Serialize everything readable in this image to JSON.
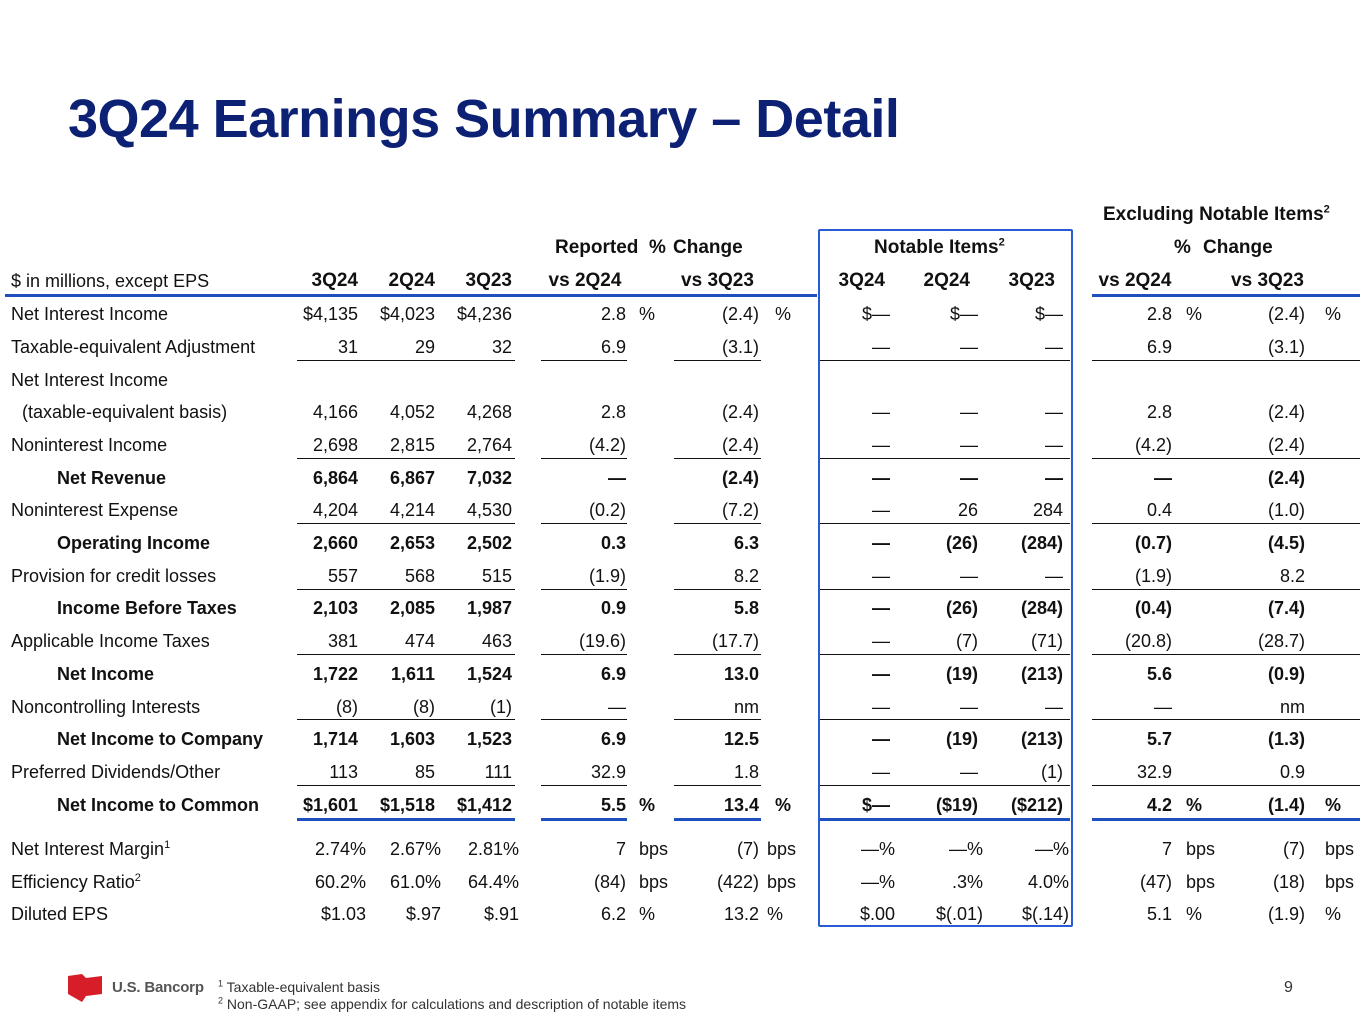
{
  "title": "3Q24 Earnings Summary – Detail",
  "colors": {
    "title": "#0c2074",
    "accent_line": "#1f4fbf",
    "box": "#2a5bd7"
  },
  "headers": {
    "excluding": "Excluding Notable Items",
    "excluding_sup": "2",
    "reported": "Reported",
    "pct_sign": "%",
    "change": "Change",
    "notable": "Notable Items",
    "notable_sup": "2",
    "pct_change_pct": "%",
    "pct_change_word": "Change",
    "rowlabel": "$ in millions, except EPS",
    "c3q24": "3Q24",
    "c2q24": "2Q24",
    "c3q23": "3Q23",
    "vs2q24": "vs 2Q24",
    "vs3q23": "vs 3Q23",
    "n3q24": "3Q24",
    "n2q24": "2Q24",
    "n3q23": "3Q23",
    "evs2q24": "vs 2Q24",
    "evs3q23": "vs 3Q23"
  },
  "rows": [
    {
      "label": "Net Interest Income",
      "q1": "$4,135",
      "q2": "$4,023",
      "q3": "$4,236",
      "v1": "2.8",
      "v1u": "%",
      "v2": "(2.4)",
      "v2u": "%",
      "n1": "$—",
      "n2": "$—",
      "n3": "$—",
      "e1": "2.8",
      "e1u": "%",
      "e2": "(2.4)",
      "e2u": "%"
    },
    {
      "label": "Taxable-equivalent Adjustment",
      "q1": "31",
      "q2": "29",
      "q3": "32",
      "v1": "6.9",
      "v1u": "",
      "v2": "(3.1)",
      "v2u": "",
      "n1": "—",
      "n2": "—",
      "n3": "—",
      "e1": "6.9",
      "e1u": "",
      "e2": "(3.1)",
      "e2u": ""
    },
    {
      "label": "Net Interest Income",
      "q1": "",
      "q2": "",
      "q3": "",
      "v1": "",
      "v1u": "",
      "v2": "",
      "v2u": "",
      "n1": "",
      "n2": "",
      "n3": "",
      "e1": "",
      "e1u": "",
      "e2": "",
      "e2u": ""
    },
    {
      "label": "(taxable-equivalent basis)",
      "q1": "4,166",
      "q2": "4,052",
      "q3": "4,268",
      "v1": "2.8",
      "v1u": "",
      "v2": "(2.4)",
      "v2u": "",
      "n1": "—",
      "n2": "—",
      "n3": "—",
      "e1": "2.8",
      "e1u": "",
      "e2": "(2.4)",
      "e2u": ""
    },
    {
      "label": "Noninterest Income",
      "q1": "2,698",
      "q2": "2,815",
      "q3": "2,764",
      "v1": "(4.2)",
      "v1u": "",
      "v2": "(2.4)",
      "v2u": "",
      "n1": "—",
      "n2": "—",
      "n3": "—",
      "e1": "(4.2)",
      "e1u": "",
      "e2": "(2.4)",
      "e2u": ""
    },
    {
      "label": "Net Revenue",
      "q1": "6,864",
      "q2": "6,867",
      "q3": "7,032",
      "v1": "—",
      "v1u": "",
      "v2": "(2.4)",
      "v2u": "",
      "n1": "—",
      "n2": "—",
      "n3": "—",
      "e1": "—",
      "e1u": "",
      "e2": "(2.4)",
      "e2u": ""
    },
    {
      "label": "Noninterest Expense",
      "q1": "4,204",
      "q2": "4,214",
      "q3": "4,530",
      "v1": "(0.2)",
      "v1u": "",
      "v2": "(7.2)",
      "v2u": "",
      "n1": "—",
      "n2": "26",
      "n3": "284",
      "e1": "0.4",
      "e1u": "",
      "e2": "(1.0)",
      "e2u": ""
    },
    {
      "label": "Operating Income",
      "q1": "2,660",
      "q2": "2,653",
      "q3": "2,502",
      "v1": "0.3",
      "v1u": "",
      "v2": "6.3",
      "v2u": "",
      "n1": "—",
      "n2": "(26)",
      "n3": "(284)",
      "e1": "(0.7)",
      "e1u": "",
      "e2": "(4.5)",
      "e2u": ""
    },
    {
      "label": "Provision for credit losses",
      "q1": "557",
      "q2": "568",
      "q3": "515",
      "v1": "(1.9)",
      "v1u": "",
      "v2": "8.2",
      "v2u": "",
      "n1": "—",
      "n2": "—",
      "n3": "—",
      "e1": "(1.9)",
      "e1u": "",
      "e2": "8.2",
      "e2u": ""
    },
    {
      "label": "Income Before Taxes",
      "q1": "2,103",
      "q2": "2,085",
      "q3": "1,987",
      "v1": "0.9",
      "v1u": "",
      "v2": "5.8",
      "v2u": "",
      "n1": "—",
      "n2": "(26)",
      "n3": "(284)",
      "e1": "(0.4)",
      "e1u": "",
      "e2": "(7.4)",
      "e2u": ""
    },
    {
      "label": "Applicable Income Taxes",
      "q1": "381",
      "q2": "474",
      "q3": "463",
      "v1": "(19.6)",
      "v1u": "",
      "v2": "(17.7)",
      "v2u": "",
      "n1": "—",
      "n2": "(7)",
      "n3": "(71)",
      "e1": "(20.8)",
      "e1u": "",
      "e2": "(28.7)",
      "e2u": ""
    },
    {
      "label": "Net Income",
      "q1": "1,722",
      "q2": "1,611",
      "q3": "1,524",
      "v1": "6.9",
      "v1u": "",
      "v2": "13.0",
      "v2u": "",
      "n1": "—",
      "n2": "(19)",
      "n3": "(213)",
      "e1": "5.6",
      "e1u": "",
      "e2": "(0.9)",
      "e2u": ""
    },
    {
      "label": "Noncontrolling Interests",
      "q1": "(8)",
      "q2": "(8)",
      "q3": "(1)",
      "v1": "—",
      "v1u": "",
      "v2": "nm",
      "v2u": "",
      "n1": "—",
      "n2": "—",
      "n3": "—",
      "e1": "—",
      "e1u": "",
      "e2": "nm",
      "e2u": ""
    },
    {
      "label": "Net Income to Company",
      "q1": "1,714",
      "q2": "1,603",
      "q3": "1,523",
      "v1": "6.9",
      "v1u": "",
      "v2": "12.5",
      "v2u": "",
      "n1": "—",
      "n2": "(19)",
      "n3": "(213)",
      "e1": "5.7",
      "e1u": "",
      "e2": "(1.3)",
      "e2u": ""
    },
    {
      "label": "Preferred Dividends/Other",
      "q1": "113",
      "q2": "85",
      "q3": "111",
      "v1": "32.9",
      "v1u": "",
      "v2": "1.8",
      "v2u": "",
      "n1": "—",
      "n2": "—",
      "n3": "(1)",
      "e1": "32.9",
      "e1u": "",
      "e2": "0.9",
      "e2u": ""
    },
    {
      "label": "Net Income to Common",
      "q1": "$1,601",
      "q2": "$1,518",
      "q3": "$1,412",
      "v1": "5.5",
      "v1u": "%",
      "v2": "13.4",
      "v2u": "%",
      "n1": "$—",
      "n2": "($19)",
      "n3": "($212)",
      "e1": "4.2",
      "e1u": "%",
      "e2": "(1.4)",
      "e2u": "%"
    },
    {
      "label": "Net Interest Margin",
      "sup": "1",
      "q1": "2.74%",
      "q2": "2.67%",
      "q3": "2.81%",
      "v1": "7",
      "v1u": "bps",
      "v2": "(7)",
      "v2u": "bps",
      "n1": "—%",
      "n2": "—%",
      "n3": "—%",
      "e1": "7",
      "e1u": "bps",
      "e2": "(7)",
      "e2u": "bps"
    },
    {
      "label": "Efficiency Ratio",
      "sup": "2",
      "q1": "60.2%",
      "q2": "61.0%",
      "q3": "64.4%",
      "v1": "(84)",
      "v1u": "bps",
      "v2": "(422)",
      "v2u": "bps",
      "n1": "—%",
      "n2": ".3%",
      "n3": "4.0%",
      "e1": "(47)",
      "e1u": "bps",
      "e2": "(18)",
      "e2u": "bps"
    },
    {
      "label": "Diluted EPS",
      "q1": "$1.03",
      "q2": "$.97",
      "q3": "$.91",
      "v1": "6.2",
      "v1u": "%",
      "v2": "13.2",
      "v2u": "%",
      "n1": "$.00",
      "n2": "$(.01)",
      "n3": "$(.14)",
      "e1": "5.1",
      "e1u": "%",
      "e2": "(1.9)",
      "e2u": "%"
    }
  ],
  "footnotes": [
    {
      "num": "1",
      "text": "Taxable-equivalent basis"
    },
    {
      "num": "2",
      "text": "Non-GAAP; see appendix for calculations and description of notable items"
    }
  ],
  "logo_text": "U.S. Bancorp",
  "page_number": "9"
}
